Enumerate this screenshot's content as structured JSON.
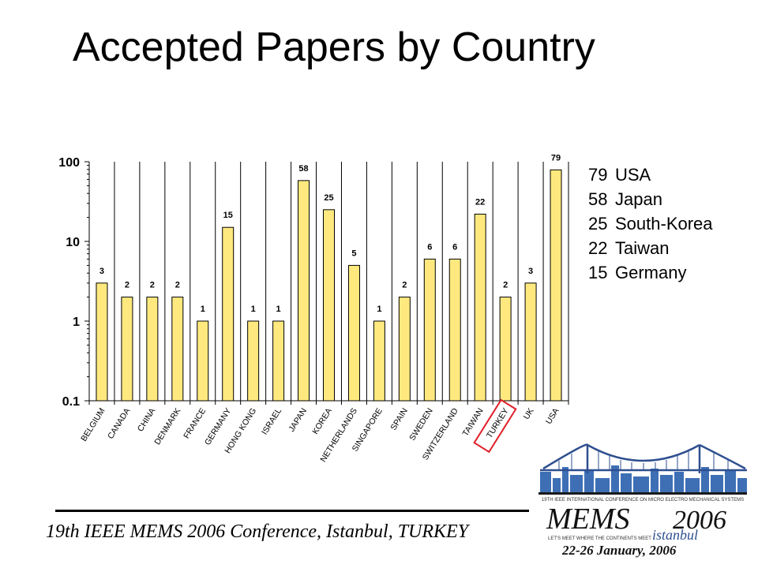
{
  "slide": {
    "title": "Accepted Papers by Country",
    "footer": "19th IEEE MEMS 2006 Conference, Istanbul, TURKEY"
  },
  "top_countries": [
    {
      "value": "79",
      "name": "USA"
    },
    {
      "value": "58",
      "name": "Japan"
    },
    {
      "value": "25",
      "name": "South-Korea"
    },
    {
      "value": "22",
      "name": "Taiwan"
    },
    {
      "value": "15",
      "name": "Germany"
    }
  ],
  "chart_data": {
    "type": "bar",
    "y_scale": "log",
    "ylim": [
      0.1,
      100
    ],
    "yticks": [
      "100",
      "10",
      "1",
      "0.1"
    ],
    "grid": "vertical lines between categories",
    "categories": [
      "BELGIUM",
      "CANADA",
      "CHINA",
      "DENMARK",
      "FRANCE",
      "GERMANY",
      "HONG KONG",
      "ISRAEL",
      "JAPAN",
      "KOREA",
      "NETHERLANDS",
      "SINGAPORE",
      "SPAIN",
      "SWEDEN",
      "SWITZERLAND",
      "TAIWAN",
      "TURKEY",
      "UK",
      "USA"
    ],
    "values": [
      3,
      2,
      2,
      2,
      1,
      15,
      1,
      1,
      58,
      25,
      5,
      1,
      2,
      6,
      6,
      22,
      2,
      3,
      79
    ],
    "highlighted_category": "TURKEY",
    "bar_color": "#FFE97F",
    "highlight_color": "#E0202A"
  },
  "logo": {
    "header": "19TH IEEE INTERNATIONAL CONFERENCE ON MICRO ELECTRO MECHANICAL SYSTEMS",
    "mems": "MEMS",
    "year": "2006",
    "city": "istanbul",
    "tagline": "LET'S MEET WHERE THE CONTINENTS MEET",
    "dates": "22-26 January, 2006"
  }
}
